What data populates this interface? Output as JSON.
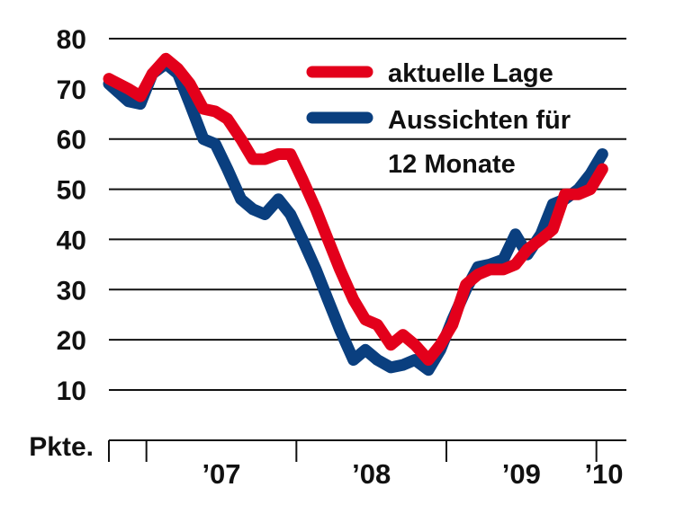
{
  "chart_data": {
    "type": "line",
    "unit_label": "Pkte.",
    "ylim": [
      10,
      80
    ],
    "y_ticks": [
      80,
      70,
      60,
      50,
      40,
      30,
      20,
      10
    ],
    "x_range": [
      2006.75,
      2010.2
    ],
    "x_dividers": [
      2007.0,
      2008.0,
      2009.0,
      2010.0
    ],
    "year_labels": [
      {
        "label": "’07",
        "x": 2007.5
      },
      {
        "label": "’08",
        "x": 2008.5
      },
      {
        "label": "’09",
        "x": 2009.5
      },
      {
        "label": "’10",
        "x": 2010.05
      }
    ],
    "grid": true,
    "legend_position": "top-right",
    "legend_lines": [
      "aktuelle Lage",
      "Aussichten für",
      "12 Monate"
    ],
    "series": [
      {
        "name": "aktuelle Lage",
        "color": "#e3001b",
        "points": [
          [
            2006.75,
            72
          ],
          [
            2006.88,
            70
          ],
          [
            2006.96,
            68.5
          ],
          [
            2007.04,
            73
          ],
          [
            2007.13,
            76
          ],
          [
            2007.21,
            74
          ],
          [
            2007.29,
            71
          ],
          [
            2007.38,
            66
          ],
          [
            2007.46,
            65.5
          ],
          [
            2007.54,
            64
          ],
          [
            2007.63,
            60
          ],
          [
            2007.71,
            56
          ],
          [
            2007.79,
            56
          ],
          [
            2007.88,
            57
          ],
          [
            2007.96,
            57
          ],
          [
            2008.04,
            52
          ],
          [
            2008.13,
            46
          ],
          [
            2008.21,
            40
          ],
          [
            2008.29,
            34
          ],
          [
            2008.38,
            28
          ],
          [
            2008.46,
            24
          ],
          [
            2008.54,
            23
          ],
          [
            2008.63,
            19
          ],
          [
            2008.71,
            21
          ],
          [
            2008.79,
            19
          ],
          [
            2008.88,
            16
          ],
          [
            2008.96,
            19
          ],
          [
            2009.04,
            23
          ],
          [
            2009.13,
            31
          ],
          [
            2009.21,
            33
          ],
          [
            2009.29,
            34
          ],
          [
            2009.38,
            34
          ],
          [
            2009.46,
            35
          ],
          [
            2009.54,
            38
          ],
          [
            2009.63,
            40
          ],
          [
            2009.71,
            42
          ],
          [
            2009.79,
            49
          ],
          [
            2009.88,
            49
          ],
          [
            2009.96,
            50
          ],
          [
            2010.04,
            54
          ]
        ]
      },
      {
        "name": "Aussichten für 12 Monate",
        "color": "#0a3f7f",
        "points": [
          [
            2006.75,
            71
          ],
          [
            2006.88,
            67.5
          ],
          [
            2006.96,
            67
          ],
          [
            2007.04,
            73
          ],
          [
            2007.13,
            75
          ],
          [
            2007.21,
            73
          ],
          [
            2007.29,
            67
          ],
          [
            2007.38,
            60
          ],
          [
            2007.46,
            59
          ],
          [
            2007.54,
            54
          ],
          [
            2007.63,
            48
          ],
          [
            2007.71,
            46
          ],
          [
            2007.79,
            45
          ],
          [
            2007.88,
            48
          ],
          [
            2007.96,
            45
          ],
          [
            2008.04,
            40
          ],
          [
            2008.13,
            34
          ],
          [
            2008.21,
            28
          ],
          [
            2008.29,
            22
          ],
          [
            2008.38,
            16
          ],
          [
            2008.46,
            18
          ],
          [
            2008.54,
            16
          ],
          [
            2008.63,
            14.5
          ],
          [
            2008.71,
            15
          ],
          [
            2008.79,
            16
          ],
          [
            2008.88,
            14
          ],
          [
            2008.96,
            18
          ],
          [
            2009.04,
            24
          ],
          [
            2009.13,
            30
          ],
          [
            2009.21,
            34.5
          ],
          [
            2009.29,
            35
          ],
          [
            2009.38,
            36
          ],
          [
            2009.46,
            41
          ],
          [
            2009.54,
            37
          ],
          [
            2009.63,
            41
          ],
          [
            2009.71,
            47
          ],
          [
            2009.79,
            48
          ],
          [
            2009.88,
            50
          ],
          [
            2009.96,
            53
          ],
          [
            2010.04,
            57
          ]
        ]
      }
    ]
  }
}
